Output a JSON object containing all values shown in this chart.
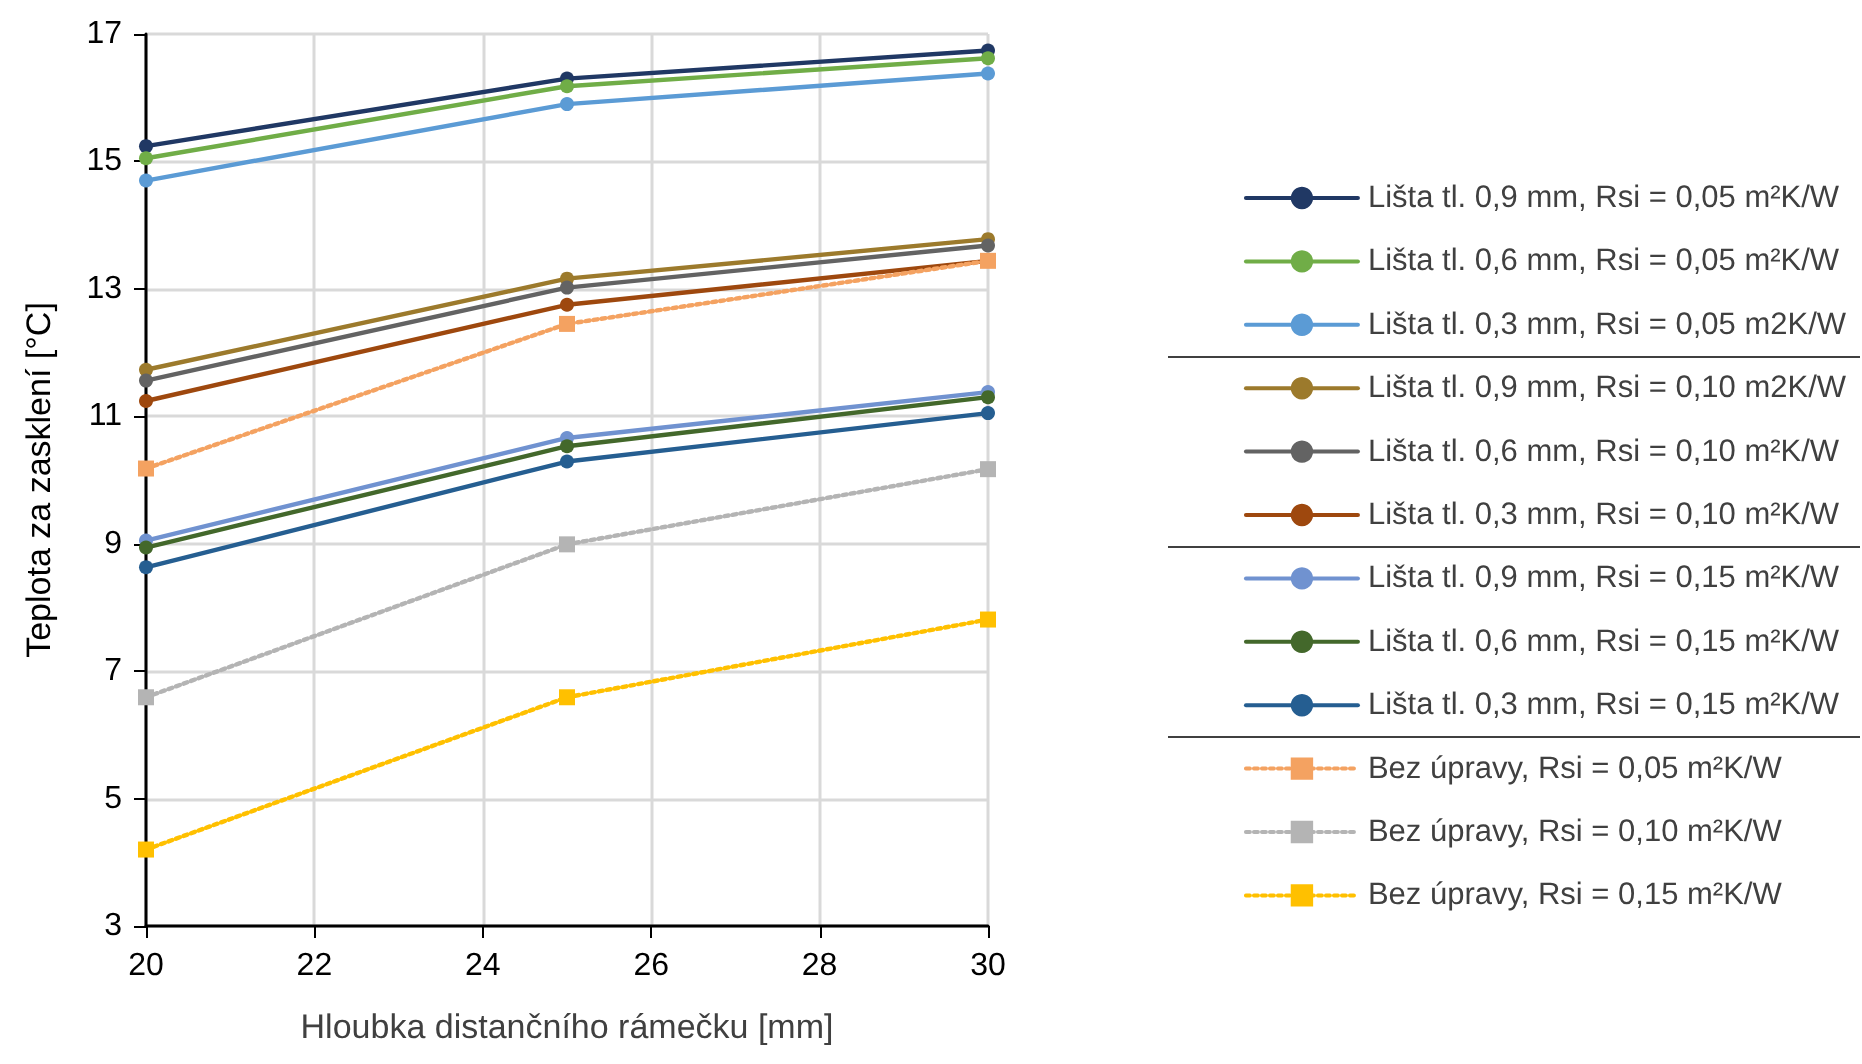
{
  "chart_data": {
    "type": "line",
    "xlabel": "Hloubka distančního rámečku [mm]",
    "ylabel": "Teplota za zasklení [°C]",
    "x": [
      20,
      25,
      30
    ],
    "xlim": [
      20,
      30
    ],
    "xticks": [
      20,
      22,
      24,
      26,
      28,
      30
    ],
    "ylim": [
      3,
      17
    ],
    "yticks": [
      3,
      5,
      7,
      9,
      11,
      13,
      15,
      17
    ],
    "grid": true,
    "legend": "right",
    "marker": "circle",
    "line_style": "solid",
    "series": [
      {
        "name": "Lišta tl. 0,9 mm, Rsi = 0,05 m²K/W",
        "color": "#203864",
        "values": [
          15.24,
          16.3,
          16.74
        ]
      },
      {
        "name": "Lišta tl. 0,6 mm, Rsi = 0,05 m²K/W",
        "color": "#70ad47",
        "values": [
          15.05,
          16.18,
          16.62
        ]
      },
      {
        "name": "Lišta tl. 0,3 mm, Rsi = 0,05 m2K/W",
        "color": "#5b9bd5",
        "values": [
          14.7,
          15.9,
          16.38
        ]
      },
      {
        "name": "Lišta tl. 0,9 mm, Rsi = 0,10 m2K/W",
        "color": "#9c7a2c",
        "values": [
          11.73,
          13.16,
          13.78
        ]
      },
      {
        "name": "Lišta tl. 0,6 mm, Rsi = 0,10 m²K/W",
        "color": "#636363",
        "values": [
          11.56,
          13.02,
          13.68
        ]
      },
      {
        "name": "Lišta tl. 0,3 mm, Rsi = 0,10 m²K/W",
        "color": "#9e480e",
        "values": [
          11.24,
          12.75,
          13.44
        ]
      },
      {
        "name": "Lišta tl. 0,9 mm, Rsi = 0,15 m²K/W",
        "color": "#7092d0",
        "values": [
          9.05,
          10.66,
          11.38
        ]
      },
      {
        "name": "Lišta tl. 0,6 mm, Rsi = 0,15 m²K/W",
        "color": "#43682b",
        "values": [
          8.94,
          10.53,
          11.3
        ]
      },
      {
        "name": "Lišta tl. 0,3 mm, Rsi = 0,15 m²K/W",
        "color": "#255e91",
        "values": [
          8.63,
          10.29,
          11.05
        ]
      },
      {
        "name": "Bez úpravy, Rsi = 0,05 m²K/W",
        "color": "#f4a261",
        "values": [
          10.18,
          12.45,
          13.44
        ],
        "marker": "square",
        "line_style": "dotted"
      },
      {
        "name": "Bez úpravy, Rsi = 0,10 m²K/W",
        "color": "#b4b4b4",
        "values": [
          6.59,
          8.99,
          10.17
        ],
        "marker": "square",
        "line_style": "dotted"
      },
      {
        "name": "Bez úpravy, Rsi = 0,15 m²K/W",
        "color": "#ffc000",
        "values": [
          4.2,
          6.59,
          7.81
        ],
        "marker": "square",
        "line_style": "dotted"
      }
    ]
  }
}
